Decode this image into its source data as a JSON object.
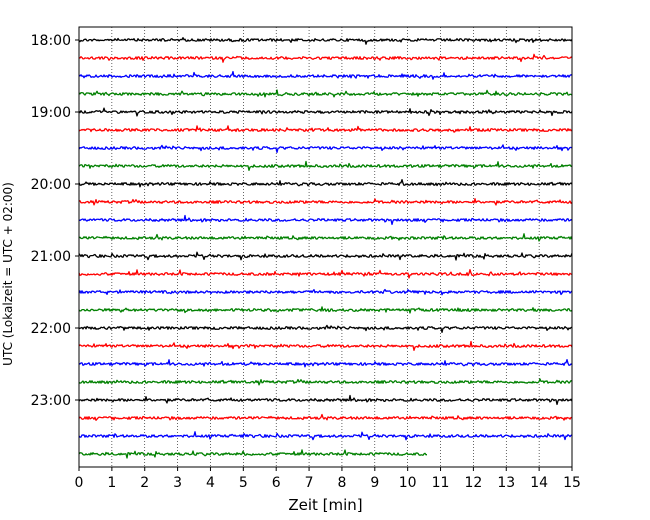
{
  "chart_data": {
    "type": "line",
    "title": "",
    "xlabel": "Zeit  [min]",
    "ylabel": "UTC (Lokalzeit = UTC + 02:00)",
    "xlim": [
      0,
      15
    ],
    "x_ticks": [
      "0",
      "1",
      "2",
      "3",
      "4",
      "5",
      "6",
      "7",
      "8",
      "9",
      "10",
      "11",
      "12",
      "13",
      "14",
      "15"
    ],
    "y_tick_labels": [
      "18:00",
      "19:00",
      "20:00",
      "21:00",
      "22:00",
      "23:00"
    ],
    "grid": "vertical-dotted",
    "trace_minutes_per_line": 15,
    "colors": [
      "#000000",
      "#ff0000",
      "#0000ff",
      "#008000"
    ],
    "series": [
      {
        "time": "18:00",
        "color": "#000000",
        "end_min": 15
      },
      {
        "time": "18:15",
        "color": "#ff0000",
        "end_min": 15
      },
      {
        "time": "18:30",
        "color": "#0000ff",
        "end_min": 15
      },
      {
        "time": "18:45",
        "color": "#008000",
        "end_min": 15
      },
      {
        "time": "19:00",
        "color": "#000000",
        "end_min": 15
      },
      {
        "time": "19:15",
        "color": "#ff0000",
        "end_min": 15
      },
      {
        "time": "19:30",
        "color": "#0000ff",
        "end_min": 15
      },
      {
        "time": "19:45",
        "color": "#008000",
        "end_min": 15
      },
      {
        "time": "20:00",
        "color": "#000000",
        "end_min": 15
      },
      {
        "time": "20:15",
        "color": "#ff0000",
        "end_min": 15
      },
      {
        "time": "20:30",
        "color": "#0000ff",
        "end_min": 15
      },
      {
        "time": "20:45",
        "color": "#008000",
        "end_min": 15
      },
      {
        "time": "21:00",
        "color": "#000000",
        "end_min": 15
      },
      {
        "time": "21:15",
        "color": "#ff0000",
        "end_min": 15
      },
      {
        "time": "21:30",
        "color": "#0000ff",
        "end_min": 15
      },
      {
        "time": "21:45",
        "color": "#008000",
        "end_min": 15
      },
      {
        "time": "22:00",
        "color": "#000000",
        "end_min": 15
      },
      {
        "time": "22:15",
        "color": "#ff0000",
        "end_min": 15
      },
      {
        "time": "22:30",
        "color": "#0000ff",
        "end_min": 15
      },
      {
        "time": "22:45",
        "color": "#008000",
        "end_min": 15
      },
      {
        "time": "23:00",
        "color": "#000000",
        "end_min": 15
      },
      {
        "time": "23:15",
        "color": "#ff0000",
        "end_min": 15
      },
      {
        "time": "23:30",
        "color": "#0000ff",
        "end_min": 15
      },
      {
        "time": "23:45",
        "color": "#008000",
        "end_min": 10.6
      }
    ]
  }
}
